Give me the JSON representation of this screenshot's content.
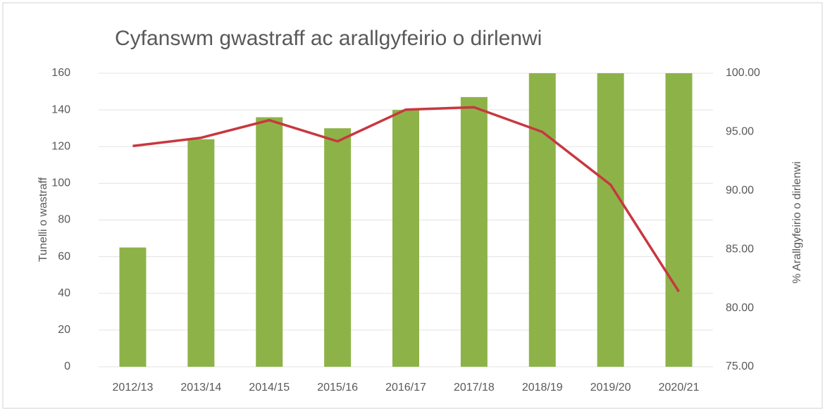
{
  "chart_data": {
    "type": "combo",
    "title": "Cyfanswm gwastraff ac arallgyfeirio o dirlenwi",
    "y_label": "Tunelli o wastraff",
    "y2_label": "% Arallgyfeirio o dirlenwi",
    "categories": [
      "2012/13",
      "2013/14",
      "2014/15",
      "2015/16",
      "2016/17",
      "2017/18",
      "2018/19",
      "2019/20",
      "2020/21"
    ],
    "series": [
      {
        "type": "bar",
        "color": "#8db348",
        "values": [
          65,
          124,
          136,
          130,
          140,
          147,
          160,
          160,
          160
        ]
      },
      {
        "type": "line",
        "axis": "y2",
        "color": "#c8373f",
        "values": [
          93.8,
          94.5,
          96.0,
          94.2,
          96.9,
          97.1,
          95.0,
          90.5,
          81.4
        ]
      }
    ],
    "ylim": [
      0,
      160
    ],
    "yticks": [
      0,
      20,
      40,
      60,
      80,
      100,
      120,
      140,
      160
    ],
    "y2lim": [
      75,
      100
    ],
    "y2ticks": [
      {
        "value": 75,
        "label": "75.00"
      },
      {
        "value": 80,
        "label": "80.00"
      },
      {
        "value": 85,
        "label": "85.00"
      },
      {
        "value": 90,
        "label": "90.00"
      },
      {
        "value": 95,
        "label": "95.00"
      },
      {
        "value": 100,
        "label": "100.00"
      }
    ],
    "grid": true
  }
}
